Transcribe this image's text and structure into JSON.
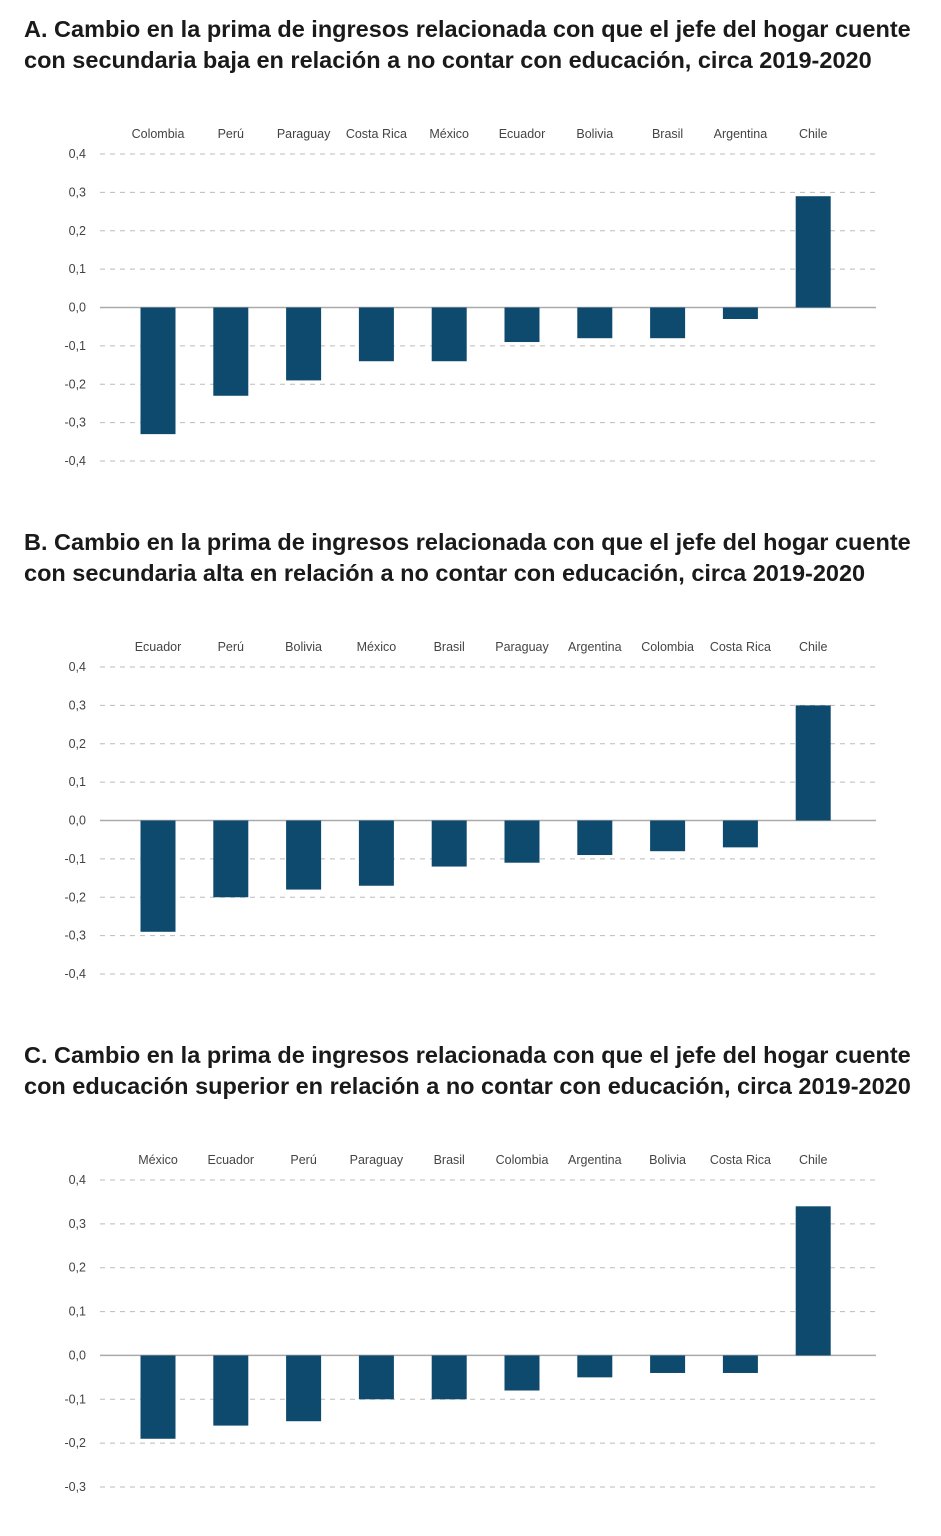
{
  "bar_color": "#0d4a6e",
  "chart_data": [
    {
      "type": "bar",
      "title": "A. Cambio en la prima de ingresos relacionada con que el jefe del hogar cuente con secundaria baja en relación a no contar con educación, circa 2019-2020",
      "categories": [
        "Colombia",
        "Perú",
        "Paraguay",
        "Costa Rica",
        "México",
        "Ecuador",
        "Bolivia",
        "Brasil",
        "Argentina",
        "Chile"
      ],
      "values": [
        -0.33,
        -0.23,
        -0.19,
        -0.14,
        -0.14,
        -0.09,
        -0.08,
        -0.08,
        -0.03,
        0.29
      ],
      "ylim": [
        -0.4,
        0.4
      ],
      "yticks": [
        "0,4",
        "0,3",
        "0,2",
        "0,1",
        "0,0",
        "-0,1",
        "-0,2",
        "-0,3",
        "-0,4"
      ],
      "grid": true
    },
    {
      "type": "bar",
      "title": "B. Cambio en la prima de ingresos relacionada con que el jefe del hogar cuente con secundaria alta en relación a no contar con educación, circa 2019-2020",
      "categories": [
        "Ecuador",
        "Perú",
        "Bolivia",
        "México",
        "Brasil",
        "Paraguay",
        "Argentina",
        "Colombia",
        "Costa Rica",
        "Chile"
      ],
      "values": [
        -0.29,
        -0.2,
        -0.18,
        -0.17,
        -0.12,
        -0.11,
        -0.09,
        -0.08,
        -0.07,
        0.3
      ],
      "ylim": [
        -0.4,
        0.4
      ],
      "yticks": [
        "0,4",
        "0,3",
        "0,2",
        "0,1",
        "0,0",
        "-0,1",
        "-0,2",
        "-0,3",
        "-0,4"
      ],
      "grid": true
    },
    {
      "type": "bar",
      "title": "C. Cambio en la prima de ingresos relacionada con que el jefe del hogar cuente con educación superior en relación a no contar con educación, circa 2019-2020",
      "categories": [
        "México",
        "Ecuador",
        "Perú",
        "Paraguay",
        "Brasil",
        "Colombia",
        "Argentina",
        "Bolivia",
        "Costa Rica",
        "Chile"
      ],
      "values": [
        -0.19,
        -0.16,
        -0.15,
        -0.1,
        -0.1,
        -0.08,
        -0.05,
        -0.04,
        -0.04,
        0.34
      ],
      "ylim": [
        -0.3,
        0.4
      ],
      "yticks": [
        "0,4",
        "0,3",
        "0,2",
        "0,1",
        "0,0",
        "-0,1",
        "-0,2",
        "-0,3"
      ],
      "grid": true
    }
  ]
}
